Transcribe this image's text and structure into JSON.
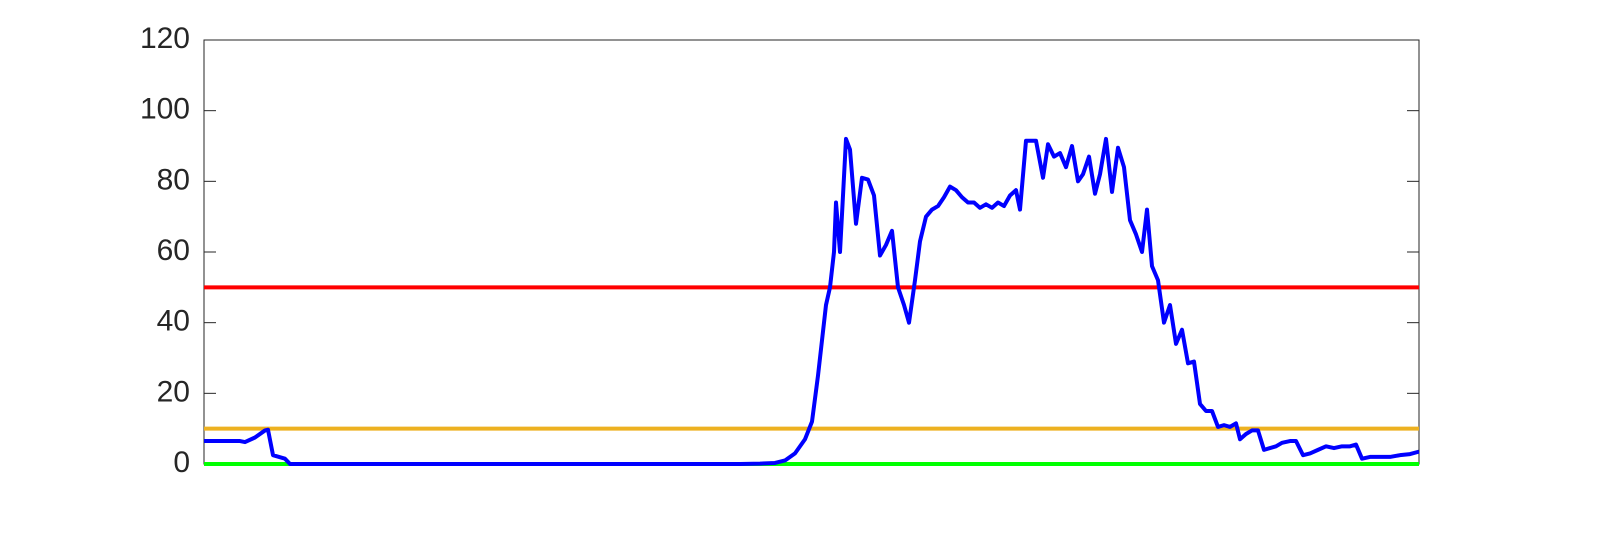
{
  "chart_data": {
    "type": "line",
    "x": [
      0,
      36,
      41,
      51,
      61,
      64,
      69,
      81,
      86,
      536,
      556,
      571,
      581,
      591,
      601,
      608,
      614,
      618,
      622,
      626,
      630,
      632,
      636,
      642,
      646,
      652,
      658,
      664,
      670,
      676,
      682,
      688,
      694,
      700,
      705,
      711,
      716,
      722,
      728,
      734,
      740,
      746,
      752,
      758,
      764,
      770,
      776,
      782,
      788,
      794,
      800,
      806,
      812,
      816,
      822,
      832,
      839,
      844,
      850,
      856,
      862,
      868,
      874,
      879,
      885,
      891,
      896,
      902,
      908,
      914,
      920,
      926,
      932,
      938,
      943,
      948,
      954,
      960,
      966,
      972,
      978,
      984,
      990,
      996,
      1002,
      1008,
      1014,
      1020,
      1026,
      1032,
      1036,
      1042,
      1048,
      1054,
      1060,
      1066,
      1072,
      1078,
      1086,
      1092,
      1099,
      1106,
      1114,
      1122,
      1130,
      1138,
      1146,
      1152,
      1158,
      1166,
      1176,
      1186,
      1196,
      1206,
      1215
    ],
    "series": [
      {
        "color": "#0000ff",
        "values": [
          6.5,
          6.5,
          6.2,
          7.5,
          9.5,
          9.7,
          2.5,
          1.5,
          0,
          0,
          0.1,
          0.3,
          1,
          3,
          7,
          12,
          25,
          35,
          45,
          50,
          60,
          74,
          60,
          92,
          89,
          68,
          81,
          80.5,
          76,
          59,
          62,
          66,
          50,
          45,
          40,
          52,
          63,
          70,
          72,
          73,
          75.5,
          78.5,
          77.5,
          75.5,
          74,
          74,
          72.5,
          73.5,
          72.5,
          74,
          73,
          76,
          77.5,
          72,
          91.5,
          91.5,
          81,
          90.5,
          87,
          88,
          84,
          90,
          80,
          82,
          87,
          76.5,
          82,
          92,
          77,
          89.5,
          84,
          69,
          65,
          60,
          72,
          56,
          52,
          40,
          45,
          34,
          38,
          28.5,
          29,
          17,
          15,
          15,
          10.5,
          11,
          10.5,
          11.5,
          7,
          8.5,
          9.5,
          9.5,
          4,
          4.5,
          5,
          6,
          6.5,
          6.5,
          2.5,
          3,
          4,
          5,
          4.5,
          5,
          5,
          5.5,
          1.5,
          2,
          2,
          2,
          2.5,
          2.8,
          3.5
        ]
      }
    ],
    "hlines": [
      {
        "value": 50,
        "color": "#ff0000"
      },
      {
        "value": 10,
        "color": "#edb120"
      },
      {
        "value": 0,
        "color": "#00ff00"
      }
    ],
    "xlim": [
      0,
      1215
    ],
    "ylim": [
      0,
      120
    ],
    "yticks": [
      0,
      20,
      40,
      60,
      80,
      100,
      120
    ]
  }
}
